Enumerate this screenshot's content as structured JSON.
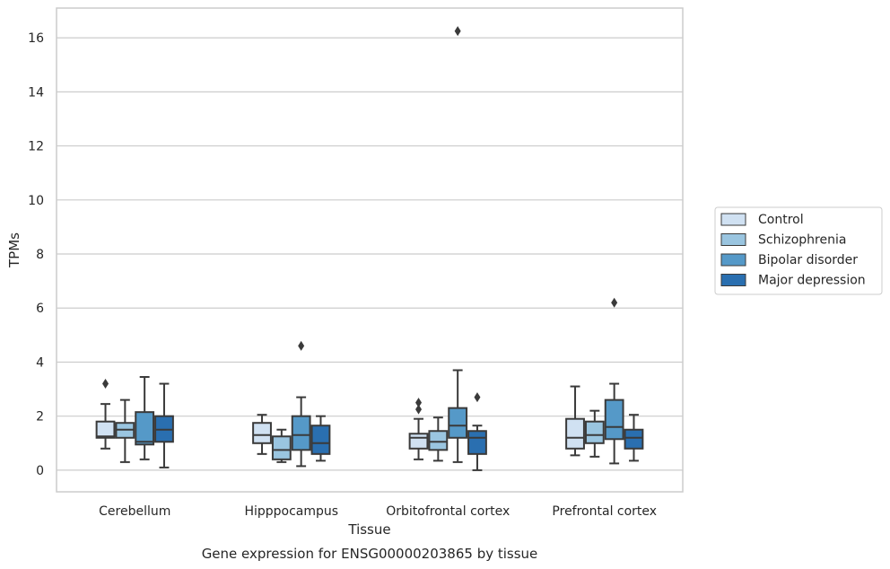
{
  "chart_data": {
    "type": "box",
    "caption": "Gene expression for ENSG00000203865 by tissue",
    "xlabel": "Tissue",
    "ylabel": "TPMs",
    "ylim": [
      -0.8,
      17.1
    ],
    "yticks": [
      0,
      2,
      4,
      6,
      8,
      10,
      12,
      14,
      16
    ],
    "grid": true,
    "legend_position": "right",
    "categories": [
      "Cerebellum",
      "Hipppocampus",
      "Orbitofrontal cortex",
      "Prefrontal cortex"
    ],
    "series": [
      {
        "name": "Control",
        "color": "#d0e1f2",
        "boxes": [
          {
            "whislo": 0.8,
            "q1": 1.2,
            "med": 1.25,
            "q3": 1.8,
            "whishi": 2.45,
            "fliers": [
              3.2
            ]
          },
          {
            "whislo": 0.6,
            "q1": 1.0,
            "med": 1.3,
            "q3": 1.75,
            "whishi": 2.05,
            "fliers": []
          },
          {
            "whislo": 0.4,
            "q1": 0.8,
            "med": 1.2,
            "q3": 1.35,
            "whishi": 1.9,
            "fliers": [
              2.25,
              2.5
            ]
          },
          {
            "whislo": 0.55,
            "q1": 0.8,
            "med": 1.2,
            "q3": 1.9,
            "whishi": 3.1,
            "fliers": []
          }
        ]
      },
      {
        "name": "Schizophrenia",
        "color": "#9ac5e0",
        "boxes": [
          {
            "whislo": 0.3,
            "q1": 1.2,
            "med": 1.5,
            "q3": 1.75,
            "whishi": 2.6,
            "fliers": []
          },
          {
            "whislo": 0.3,
            "q1": 0.4,
            "med": 0.75,
            "q3": 1.25,
            "whishi": 1.5,
            "fliers": []
          },
          {
            "whislo": 0.35,
            "q1": 0.75,
            "med": 1.05,
            "q3": 1.45,
            "whishi": 1.95,
            "fliers": []
          },
          {
            "whislo": 0.5,
            "q1": 1.0,
            "med": 1.3,
            "q3": 1.8,
            "whishi": 2.2,
            "fliers": []
          }
        ]
      },
      {
        "name": "Bipolar disorder",
        "color": "#5599c8",
        "boxes": [
          {
            "whislo": 0.4,
            "q1": 0.95,
            "med": 1.05,
            "q3": 2.15,
            "whishi": 3.45,
            "fliers": []
          },
          {
            "whislo": 0.15,
            "q1": 0.75,
            "med": 1.3,
            "q3": 2.0,
            "whishi": 2.7,
            "fliers": [
              4.6
            ]
          },
          {
            "whislo": 0.3,
            "q1": 1.2,
            "med": 1.65,
            "q3": 2.3,
            "whishi": 3.7,
            "fliers": [
              16.25
            ]
          },
          {
            "whislo": 0.25,
            "q1": 1.15,
            "med": 1.6,
            "q3": 2.6,
            "whishi": 3.2,
            "fliers": [
              6.2
            ]
          }
        ]
      },
      {
        "name": "Major depression",
        "color": "#2a6fb0",
        "boxes": [
          {
            "whislo": 0.1,
            "q1": 1.05,
            "med": 1.5,
            "q3": 2.0,
            "whishi": 3.2,
            "fliers": []
          },
          {
            "whislo": 0.35,
            "q1": 0.6,
            "med": 1.0,
            "q3": 1.65,
            "whishi": 2.0,
            "fliers": []
          },
          {
            "whislo": 0.0,
            "q1": 0.6,
            "med": 1.2,
            "q3": 1.45,
            "whishi": 1.65,
            "fliers": [
              2.7
            ]
          },
          {
            "whislo": 0.35,
            "q1": 0.8,
            "med": 1.2,
            "q3": 1.5,
            "whishi": 2.05,
            "fliers": []
          }
        ]
      }
    ]
  }
}
